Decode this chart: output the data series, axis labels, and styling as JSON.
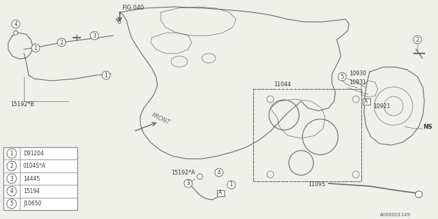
{
  "bg_color": "#f0f0eb",
  "line_color": "#666666",
  "fig_ref": "FIG.040",
  "doc_ref": "A006001149",
  "front_label": "FRONT",
  "legend_items": [
    {
      "num": "1",
      "code": "D91204"
    },
    {
      "num": "2",
      "code": "0104S*A"
    },
    {
      "num": "3",
      "code": "14445"
    },
    {
      "num": "4",
      "code": "15194"
    },
    {
      "num": "5",
      "code": "J10650"
    }
  ],
  "ns_label": "NS",
  "small_fontsize": 6.0,
  "leg_fontsize": 5.5,
  "label_fontsize": 5.8
}
